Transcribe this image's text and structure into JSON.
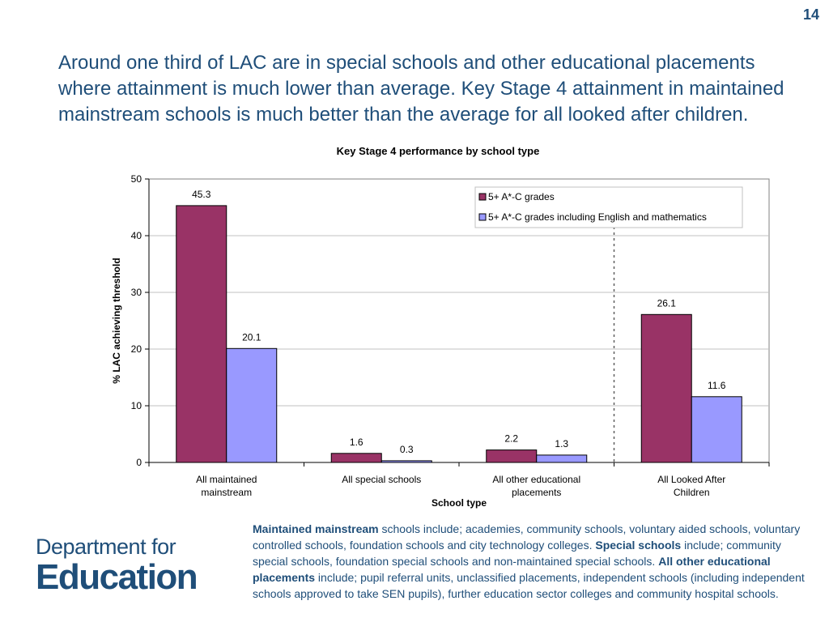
{
  "page_number": "14",
  "headline": "Around one third of LAC are in special schools and other educational placements where attainment is much lower than average. Key Stage 4 attainment in maintained mainstream schools is much better than the average for all looked after children.",
  "logo": {
    "line1": "Department for",
    "line2": "Education"
  },
  "caption": {
    "part1_bold": "Maintained mainstream",
    "part1_text": " schools include; academies, community schools, voluntary aided schools, voluntary controlled schools, foundation schools and city technology colleges. ",
    "part2_bold": "Special schools",
    "part2_text": " include; community special schools, foundation special schools and non-maintained special schools. ",
    "part3_bold": "All other educational placements",
    "part3_text": " include; pupil referral units, unclassified placements, independent schools (including independent schools approved to take SEN pupils), further education sector colleges and community hospital schools."
  },
  "colors": {
    "series1": "#993366",
    "series2": "#9999ff",
    "text_blue": "#1f4e79"
  },
  "chart_data": {
    "type": "bar",
    "title": "Key Stage 4 performance by school type",
    "xlabel": "School type",
    "ylabel": "% LAC achieving threshold",
    "ylim": [
      0,
      50
    ],
    "yticks": [
      0,
      10,
      20,
      30,
      40,
      50
    ],
    "grid": true,
    "legend_position": "top-right",
    "categories": [
      "All maintained mainstream",
      "All special schools",
      "All other educational placements",
      "All Looked After Children"
    ],
    "series": [
      {
        "name": "5+ A*-C grades",
        "values": [
          45.3,
          1.6,
          2.2,
          26.1
        ]
      },
      {
        "name": "5+ A*-C grades including English and mathematics",
        "values": [
          20.1,
          0.3,
          1.3,
          11.6
        ]
      }
    ],
    "data_labels": [
      [
        "45.3",
        "1.6",
        "2.2",
        "26.1"
      ],
      [
        "20.1",
        "0.3",
        "1.3",
        "11.6"
      ]
    ],
    "annotations": [
      "dashed vertical separator before All Looked After Children"
    ]
  }
}
